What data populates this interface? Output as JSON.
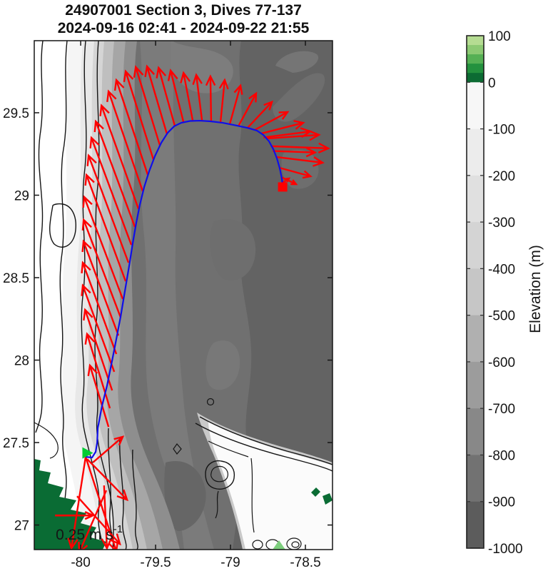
{
  "title": {
    "line1": "24907001 Section 3, Dives 77-137",
    "line2": "2024-09-16 02:41 - 2024-09-22 21:55"
  },
  "axes": {
    "lon_range": [
      -80.31,
      -78.319
    ],
    "lat_range": [
      26.851,
      29.937
    ],
    "x_ticks": [
      {
        "value": -80,
        "label": "-80"
      },
      {
        "value": -79.5,
        "label": "-79.5"
      },
      {
        "value": -79,
        "label": "-79"
      },
      {
        "value": -78.5,
        "label": "-78.5"
      }
    ],
    "y_ticks": [
      {
        "value": 27,
        "label": "27"
      },
      {
        "value": 27.5,
        "label": "27.5"
      },
      {
        "value": 28,
        "label": "28"
      },
      {
        "value": 28.5,
        "label": "28.5"
      },
      {
        "value": 29,
        "label": "29"
      },
      {
        "value": 29.5,
        "label": "29.5"
      }
    ]
  },
  "colorbar": {
    "label": "Elevation (m)",
    "range": [
      100,
      -1000
    ],
    "ticks": [
      {
        "value": 100,
        "label": "100"
      },
      {
        "value": 0,
        "label": "0"
      },
      {
        "value": -100,
        "label": "-100"
      },
      {
        "value": -200,
        "label": "-200"
      },
      {
        "value": -300,
        "label": "-300"
      },
      {
        "value": -400,
        "label": "-400"
      },
      {
        "value": -500,
        "label": "-500"
      },
      {
        "value": -600,
        "label": "-600"
      },
      {
        "value": -700,
        "label": "-700"
      },
      {
        "value": -800,
        "label": "-800"
      },
      {
        "value": -900,
        "label": "-900"
      },
      {
        "value": -1000,
        "label": "-1000"
      }
    ],
    "segments": [
      {
        "from": 100,
        "to": 80,
        "color": "#b5dc92"
      },
      {
        "from": 80,
        "to": 60,
        "color": "#8cc973"
      },
      {
        "from": 60,
        "to": 40,
        "color": "#55b054"
      },
      {
        "from": 40,
        "to": 20,
        "color": "#23913e"
      },
      {
        "from": 20,
        "to": 0,
        "color": "#0c6b33"
      },
      {
        "from": 0,
        "to": -100,
        "color": "#f7f7f7"
      },
      {
        "from": -100,
        "to": -200,
        "color": "#ececec"
      },
      {
        "from": -200,
        "to": -300,
        "color": "#e0e0e0"
      },
      {
        "from": -300,
        "to": -400,
        "color": "#d4d4d4"
      },
      {
        "from": -400,
        "to": -500,
        "color": "#c6c6c6"
      },
      {
        "from": -500,
        "to": -600,
        "color": "#b0b0b0"
      },
      {
        "from": -600,
        "to": -700,
        "color": "#9c9c9c"
      },
      {
        "from": -700,
        "to": -800,
        "color": "#888888"
      },
      {
        "from": -800,
        "to": -900,
        "color": "#727272"
      },
      {
        "from": -900,
        "to": -1000,
        "color": "#5c5c5c"
      }
    ]
  },
  "chart_data": {
    "type": "map-quiver",
    "title": "24907001 Section 3, Dives 77-137",
    "subtitle": "2024-09-16 02:41 - 2024-09-22 21:55",
    "track": {
      "color": "#0f0fe8",
      "points": [
        [
          -79.962,
          27.413
        ],
        [
          -79.924,
          27.409
        ],
        [
          -79.9,
          27.444
        ],
        [
          -79.89,
          27.5
        ],
        [
          -79.886,
          27.587
        ],
        [
          -79.857,
          27.725
        ],
        [
          -79.824,
          27.846
        ],
        [
          -79.79,
          27.998
        ],
        [
          -79.762,
          28.128
        ],
        [
          -79.733,
          28.266
        ],
        [
          -79.705,
          28.418
        ],
        [
          -79.676,
          28.574
        ],
        [
          -79.652,
          28.712
        ],
        [
          -79.629,
          28.833
        ],
        [
          -79.605,
          28.942
        ],
        [
          -79.576,
          29.05
        ],
        [
          -79.543,
          29.145
        ],
        [
          -79.505,
          29.236
        ],
        [
          -79.462,
          29.318
        ],
        [
          -79.419,
          29.379
        ],
        [
          -79.376,
          29.418
        ],
        [
          -79.329,
          29.439
        ],
        [
          -79.271,
          29.45
        ],
        [
          -79.205,
          29.452
        ],
        [
          -79.133,
          29.448
        ],
        [
          -79.052,
          29.439
        ],
        [
          -78.967,
          29.424
        ],
        [
          -78.881,
          29.407
        ],
        [
          -78.824,
          29.392
        ],
        [
          -78.781,
          29.366
        ],
        [
          -78.743,
          29.327
        ],
        [
          -78.714,
          29.279
        ],
        [
          -78.69,
          29.223
        ],
        [
          -78.671,
          29.162
        ],
        [
          -78.659,
          29.11
        ],
        [
          -78.652,
          29.063
        ]
      ]
    },
    "vectors": {
      "color": "#ff0000",
      "units": "m s-1",
      "points": [
        [
          -79.967,
          27.413,
          -0.094,
          -0.604
        ],
        [
          -79.967,
          27.413,
          0.203,
          -0.623
        ],
        [
          -79.957,
          27.4,
          0.264,
          -0.269
        ],
        [
          -79.919,
          27.379,
          0.198,
          0.17
        ],
        [
          -79.844,
          27.24,
          0.019,
          -0.415
        ],
        [
          -79.829,
          27.21,
          -0.179,
          -0.41
        ],
        [
          -80.024,
          27.175,
          0.283,
          -0.316
        ],
        [
          -79.814,
          27.595,
          -0.123,
          0.406
        ],
        [
          -79.805,
          27.708,
          -0.151,
          0.491
        ],
        [
          -79.79,
          27.816,
          -0.179,
          0.533
        ],
        [
          -79.776,
          27.929,
          -0.208,
          0.571
        ],
        [
          -79.762,
          28.037,
          -0.222,
          0.604
        ],
        [
          -79.748,
          28.149,
          -0.231,
          0.623
        ],
        [
          -79.733,
          28.258,
          -0.245,
          0.646
        ],
        [
          -79.719,
          28.37,
          -0.255,
          0.675
        ],
        [
          -79.7,
          28.478,
          -0.259,
          0.703
        ],
        [
          -79.681,
          28.591,
          -0.264,
          0.708
        ],
        [
          -79.662,
          28.699,
          -0.264,
          0.708
        ],
        [
          -79.638,
          28.807,
          -0.259,
          0.698
        ],
        [
          -79.614,
          28.916,
          -0.245,
          0.684
        ],
        [
          -79.586,
          29.024,
          -0.226,
          0.66
        ],
        [
          -79.552,
          29.123,
          -0.208,
          0.627
        ],
        [
          -79.514,
          29.214,
          -0.184,
          0.585
        ],
        [
          -79.471,
          29.301,
          -0.16,
          0.519
        ],
        [
          -79.424,
          29.37,
          -0.132,
          0.448
        ],
        [
          -79.371,
          29.418,
          -0.108,
          0.387
        ],
        [
          -79.314,
          29.444,
          -0.085,
          0.34
        ],
        [
          -79.252,
          29.452,
          -0.061,
          0.316
        ],
        [
          -79.19,
          29.452,
          -0.038,
          0.302
        ],
        [
          -79.129,
          29.448,
          -0.005,
          0.297
        ],
        [
          -79.067,
          29.439,
          0.028,
          0.283
        ],
        [
          -79.005,
          29.431,
          0.071,
          0.255
        ],
        [
          -78.948,
          29.418,
          0.118,
          0.217
        ],
        [
          -78.89,
          29.405,
          0.165,
          0.175
        ],
        [
          -78.838,
          29.396,
          0.217,
          0.118
        ],
        [
          -78.795,
          29.374,
          0.278,
          0.071
        ],
        [
          -78.757,
          29.344,
          0.344,
          0.024
        ],
        [
          -78.724,
          29.297,
          0.373,
          -0.014
        ],
        [
          -78.695,
          29.232,
          0.307,
          -0.038
        ],
        [
          -78.676,
          29.167,
          0.208,
          -0.057
        ],
        [
          -78.662,
          29.11,
          0.099,
          -0.047
        ],
        [
          -78.652,
          29.076,
          0.042,
          0.028
        ],
        [
          -78.78,
          29.35,
          0.31,
          0.04
        ],
        [
          -78.718,
          29.268,
          0.28,
          -0.01
        ]
      ]
    },
    "markers": {
      "start": {
        "lon": -79.96,
        "lat": 27.437,
        "shape": "triangle-right",
        "color": "#00cc33"
      },
      "end": {
        "lon": -78.652,
        "lat": 29.05,
        "shape": "square",
        "color": "#ff0000"
      }
    },
    "scale_arrow": {
      "lon": -80.171,
      "lat": 27.058,
      "speed_ms": 0.25,
      "label_main": "0.25 m s",
      "label_sup": "-1"
    },
    "land_color": "#0a6c34"
  }
}
